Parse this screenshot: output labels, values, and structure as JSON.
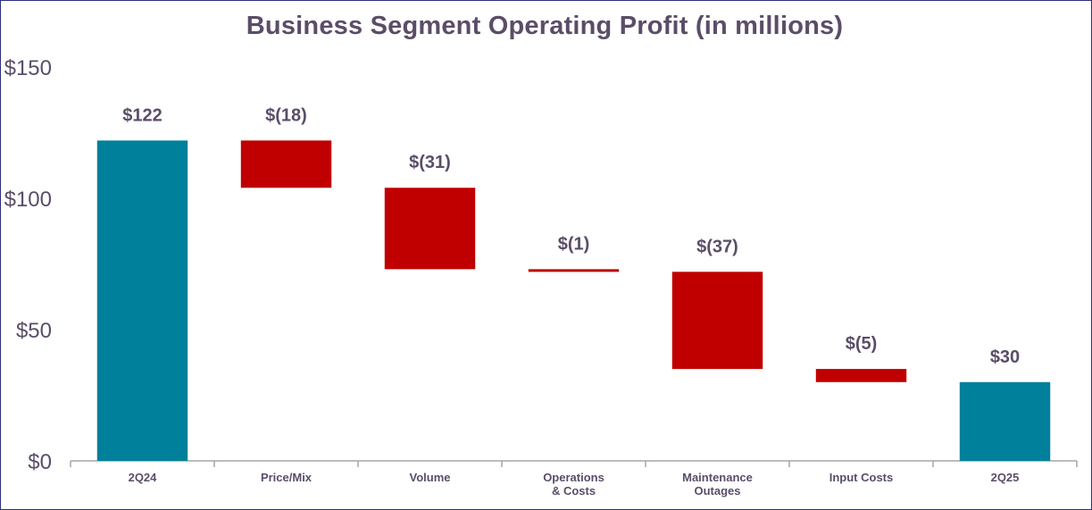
{
  "chart_data": {
    "type": "waterfall",
    "title": "Business Segment Operating Profit (in millions)",
    "xlabel": "",
    "ylabel": "",
    "ylim": [
      0,
      150
    ],
    "yticks": [
      0,
      50,
      100,
      150
    ],
    "ytick_labels": [
      "$0",
      "$50",
      "$100",
      "$150"
    ],
    "grid": false,
    "categories": [
      {
        "label": "2Q24",
        "label_lines": [
          "2Q24"
        ],
        "value": 122,
        "kind": "total",
        "data_label": "$122"
      },
      {
        "label": "Price/Mix",
        "label_lines": [
          "Price/Mix"
        ],
        "value": -18,
        "kind": "delta",
        "data_label": "$(18)"
      },
      {
        "label": "Volume",
        "label_lines": [
          "Volume"
        ],
        "value": -31,
        "kind": "delta",
        "data_label": "$(31)"
      },
      {
        "label": "Operations & Costs",
        "label_lines": [
          "Operations",
          "& Costs"
        ],
        "value": -1,
        "kind": "delta",
        "data_label": "$(1)"
      },
      {
        "label": "Maintenance Outages",
        "label_lines": [
          "Maintenance",
          "Outages"
        ],
        "value": -37,
        "kind": "delta",
        "data_label": "$(37)"
      },
      {
        "label": "Input Costs",
        "label_lines": [
          "Input Costs"
        ],
        "value": -5,
        "kind": "delta",
        "data_label": "$(5)"
      },
      {
        "label": "2Q25",
        "label_lines": [
          "2Q25"
        ],
        "value": 30,
        "kind": "total",
        "data_label": "$30"
      }
    ],
    "colors": {
      "total": "#00809a",
      "decrease": "#c00000",
      "axis": "#a6a6a6",
      "text": "#5b4d68"
    }
  }
}
